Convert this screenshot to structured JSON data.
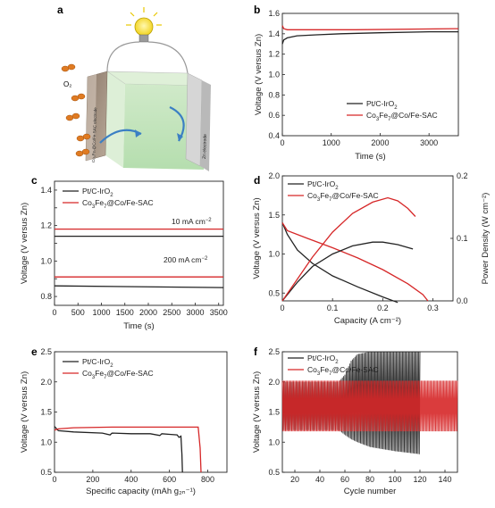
{
  "chart_data": [
    {
      "id": "a",
      "panel_label": "a",
      "type": "schematic",
      "labels": [
        "O₂",
        "Co₃Fe₇@Co/Fe-SAC electrode",
        "Zn electrode"
      ]
    },
    {
      "id": "b",
      "panel_label": "b",
      "type": "line",
      "xlabel": "Time (s)",
      "ylabel": "Voltage (V versus Zn)",
      "xlim": [
        0,
        3600
      ],
      "ylim": [
        0.4,
        1.6
      ],
      "xticks": [
        0,
        1000,
        2000,
        3000
      ],
      "yticks": [
        0.4,
        0.6,
        0.8,
        1.0,
        1.2,
        1.4,
        1.6
      ],
      "tick_labels_y": [
        "0.4",
        "0.6",
        "0.8",
        "1.0",
        "1.2",
        "1.4",
        "1.6"
      ],
      "legend": "lower-right",
      "series": [
        {
          "name": "Pt/C-IrO₂",
          "color": "#222222",
          "x": [
            0,
            30,
            100,
            300,
            700,
            1200,
            2000,
            3000,
            3600
          ],
          "y": [
            1.3,
            1.34,
            1.36,
            1.38,
            1.39,
            1.4,
            1.41,
            1.42,
            1.42
          ]
        },
        {
          "name": "Co₃Fe₇@Co/Fe-SAC",
          "color": "#d62728",
          "x": [
            0,
            30,
            100,
            400,
            1500,
            3600
          ],
          "y": [
            1.48,
            1.45,
            1.44,
            1.44,
            1.44,
            1.45
          ]
        }
      ]
    },
    {
      "id": "c",
      "panel_label": "c",
      "type": "line",
      "xlabel": "Time (s)",
      "ylabel": "Voltage (V versus Zn)",
      "xlim": [
        0,
        3600
      ],
      "ylim": [
        0.75,
        1.45
      ],
      "xticks": [
        0,
        500,
        1000,
        1500,
        2000,
        2500,
        3000,
        3500
      ],
      "yticks": [
        0.8,
        0.9,
        1.0,
        1.1,
        1.2,
        1.3,
        1.4
      ],
      "tick_labels_y": [
        "0.8",
        "",
        "1.0",
        "",
        "1.2",
        "",
        "1.4"
      ],
      "legend": "top-left",
      "annotations": [
        "10 mA cm⁻²",
        "200 mA cm⁻²"
      ],
      "series": [
        {
          "name": "Pt/C-IrO₂",
          "color": "#222222",
          "x": [
            0,
            3600
          ],
          "y": [
            1.14,
            1.14
          ]
        },
        {
          "name": "Co₃Fe₇@Co/Fe-SAC",
          "color": "#d62728",
          "x": [
            0,
            3600
          ],
          "y": [
            1.18,
            1.18
          ]
        },
        {
          "name": "Pt/C-IrO₂",
          "color": "#222222",
          "x": [
            0,
            3600
          ],
          "y": [
            0.86,
            0.85
          ]
        },
        {
          "name": "Co₃Fe₇@Co/Fe-SAC",
          "color": "#d62728",
          "x": [
            0,
            3600
          ],
          "y": [
            0.91,
            0.91
          ]
        }
      ]
    },
    {
      "id": "d",
      "panel_label": "d",
      "type": "line",
      "xlabel": "Capacity (A cm⁻²)",
      "ylabel": "Voltage (V versus Zn)",
      "ylabel_right": "Power Density (W cm⁻²)",
      "xlim": [
        0,
        0.34
      ],
      "ylim": [
        0.4,
        2.0
      ],
      "ylim_right": [
        0,
        0.2
      ],
      "xticks": [
        0.0,
        0.1,
        0.2,
        0.3
      ],
      "yticks": [
        0.5,
        1.0,
        1.5,
        2.0
      ],
      "yticks_right": [
        0.0,
        0.1,
        0.2
      ],
      "legend": "top-left",
      "series": [
        {
          "name": "Pt/C-IrO₂",
          "color": "#222222",
          "axis": "left",
          "x": [
            0,
            0.01,
            0.03,
            0.06,
            0.1,
            0.15,
            0.2,
            0.23
          ],
          "y": [
            1.4,
            1.25,
            1.05,
            0.88,
            0.72,
            0.58,
            0.45,
            0.38
          ]
        },
        {
          "name": "Co₃Fe₇@Co/Fe-SAC",
          "color": "#d62728",
          "axis": "left",
          "x": [
            0,
            0.01,
            0.05,
            0.1,
            0.15,
            0.2,
            0.25,
            0.28,
            0.29
          ],
          "y": [
            1.4,
            1.3,
            1.2,
            1.08,
            0.95,
            0.8,
            0.62,
            0.48,
            0.4
          ]
        },
        {
          "name": "Pt/C-IrO₂",
          "color": "#222222",
          "axis": "right",
          "x": [
            0,
            0.03,
            0.06,
            0.1,
            0.14,
            0.18,
            0.2,
            0.23,
            0.26
          ],
          "y": [
            0,
            0.03,
            0.055,
            0.075,
            0.088,
            0.094,
            0.094,
            0.09,
            0.083
          ]
        },
        {
          "name": "Co₃Fe₇@Co/Fe-SAC",
          "color": "#d62728",
          "axis": "right",
          "x": [
            0,
            0.03,
            0.06,
            0.1,
            0.14,
            0.18,
            0.21,
            0.23,
            0.25,
            0.265
          ],
          "y": [
            0,
            0.035,
            0.07,
            0.11,
            0.14,
            0.158,
            0.165,
            0.16,
            0.148,
            0.135
          ]
        }
      ]
    },
    {
      "id": "e",
      "panel_label": "e",
      "type": "line",
      "xlabel": "Specific capacity (mAh g₂ₙ⁻¹)",
      "ylabel": "Voltage (V versus Zn)",
      "xlim": [
        0,
        900
      ],
      "ylim": [
        0.5,
        2.5
      ],
      "xticks": [
        0,
        200,
        400,
        600,
        800
      ],
      "yticks": [
        0.5,
        1.0,
        1.5,
        2.0,
        2.5
      ],
      "legend": "top-left",
      "series": [
        {
          "name": "Pt/C-IrO₂",
          "color": "#222222",
          "x": [
            0,
            20,
            100,
            250,
            290,
            300,
            400,
            500,
            550,
            560,
            600,
            640,
            650,
            660,
            665,
            668
          ],
          "y": [
            1.26,
            1.19,
            1.17,
            1.15,
            1.12,
            1.15,
            1.14,
            1.14,
            1.11,
            1.14,
            1.13,
            1.12,
            1.08,
            1.1,
            0.8,
            0.5
          ]
        },
        {
          "name": "Co₃Fe₇@Co/Fe-SAC",
          "color": "#d62728",
          "x": [
            0,
            20,
            100,
            300,
            500,
            700,
            750,
            760,
            765
          ],
          "y": [
            1.2,
            1.22,
            1.24,
            1.25,
            1.25,
            1.25,
            1.25,
            0.9,
            0.5
          ]
        }
      ]
    },
    {
      "id": "f",
      "panel_label": "f",
      "type": "line",
      "xlabel": "Cycle number",
      "ylabel": "Voltage (V versus Zn)",
      "xlim": [
        10,
        150
      ],
      "ylim": [
        0.5,
        2.5
      ],
      "xticks": [
        20,
        40,
        60,
        80,
        100,
        120,
        140
      ],
      "yticks": [
        0.5,
        1.0,
        1.5,
        2.0,
        2.5
      ],
      "legend": "top-left",
      "series": [
        {
          "name": "Pt/C-IrO₂",
          "color": "#222222",
          "x": [
            10,
            55,
            60,
            65,
            70,
            80,
            100,
            120
          ],
          "charge": [
            2.0,
            2.0,
            2.12,
            2.35,
            2.46,
            2.5,
            2.5,
            2.5
          ],
          "discharge": [
            1.2,
            1.2,
            1.12,
            1.05,
            1.0,
            0.92,
            0.85,
            0.8
          ]
        },
        {
          "name": "Co₃Fe₇@Co/Fe-SAC",
          "color": "#d62728",
          "x": [
            10,
            150
          ],
          "charge": [
            2.02,
            2.02
          ],
          "discharge": [
            1.18,
            1.18
          ]
        }
      ]
    }
  ]
}
